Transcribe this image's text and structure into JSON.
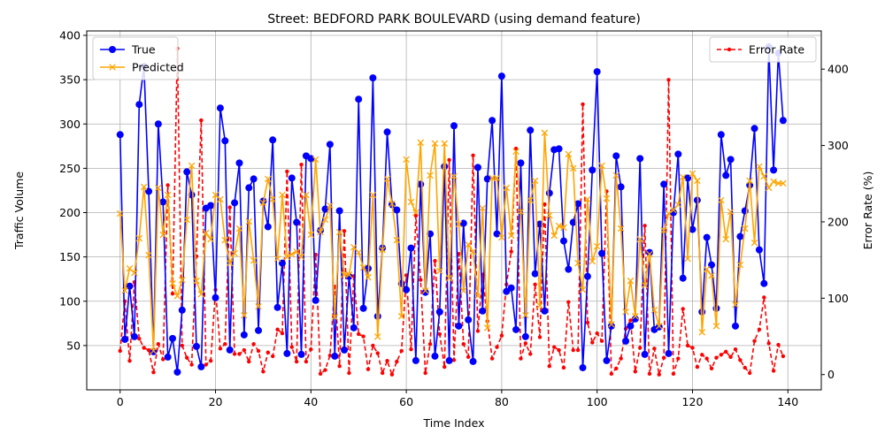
{
  "chart_data": {
    "type": "line",
    "title": "Street: BEDFORD PARK BOULEVARD (using demand feature)",
    "xlabel": "Time Index",
    "ylabel": "Traffic Volume",
    "y2label": "Error Rate (%)",
    "xlim": [
      -7,
      147
    ],
    "ylim": [
      0,
      405
    ],
    "y2lim": [
      -20,
      450
    ],
    "xticks": [
      0,
      20,
      40,
      60,
      80,
      100,
      120,
      140
    ],
    "yticks": [
      50,
      100,
      150,
      200,
      250,
      300,
      350,
      400
    ],
    "y2ticks": [
      0,
      100,
      200,
      300,
      400
    ],
    "grid": true,
    "legend_left": "top-left",
    "legend_right": "top-right",
    "colors": {
      "true": "#0000ff",
      "predicted": "#ffa500",
      "error": "#ff0000"
    },
    "series": [
      {
        "name": "True",
        "axis": "left",
        "values": [
          288,
          57,
          117,
          60,
          322,
          365,
          224,
          43,
          300,
          212,
          37,
          58,
          20,
          90,
          246,
          220,
          49,
          26,
          205,
          208,
          104,
          318,
          281,
          45,
          211,
          256,
          62,
          228,
          238,
          67,
          213,
          184,
          282,
          93,
          143,
          41,
          239,
          189,
          40,
          264,
          261,
          101,
          180,
          204,
          277,
          38,
          202,
          45,
          128,
          70,
          328,
          92,
          137,
          352,
          83,
          160,
          291,
          209,
          203,
          120,
          113,
          160,
          33,
          232,
          110,
          176,
          38,
          88,
          252,
          33,
          298,
          72,
          188,
          79,
          32,
          251,
          89,
          238,
          304,
          176,
          354,
          111,
          115,
          68,
          256,
          60,
          293,
          131,
          187,
          89,
          222,
          271,
          272,
          168,
          136,
          189,
          210,
          25,
          128,
          248,
          359,
          154,
          33,
          72,
          264,
          229,
          55,
          72,
          80,
          261,
          40,
          155,
          68,
          71,
          232,
          41,
          200,
          266,
          126,
          239,
          181,
          214,
          88,
          172,
          141,
          92,
          288,
          242,
          260,
          72,
          173,
          202,
          231,
          295,
          158,
          120,
          387,
          248,
          380,
          304
        ]
      },
      {
        "name": "Predicted",
        "axis": "left",
        "values": [
          199,
          112,
          137,
          132,
          171,
          229,
          152,
          44,
          228,
          175,
          220,
          120,
          106,
          124,
          192,
          253,
          123,
          108,
          177,
          170,
          220,
          215,
          169,
          143,
          154,
          182,
          84,
          190,
          146,
          94,
          211,
          238,
          215,
          148,
          220,
          150,
          153,
          156,
          150,
          220,
          175,
          260,
          178,
          192,
          208,
          82,
          178,
          130,
          130,
          161,
          155,
          138,
          127,
          220,
          60,
          158,
          238,
          210,
          169,
          83,
          260,
          212,
          200,
          279,
          112,
          242,
          278,
          134,
          278,
          126,
          241,
          187,
          112,
          164,
          156,
          106,
          205,
          70,
          239,
          239,
          172,
          228,
          174,
          269,
          201,
          84,
          214,
          236,
          95,
          290,
          197,
          174,
          185,
          183,
          266,
          250,
          143,
          113,
          215,
          145,
          162,
          253,
          216,
          74,
          242,
          182,
          88,
          123,
          83,
          170,
          118,
          153,
          90,
          72,
          180,
          199,
          203,
          209,
          240,
          148,
          244,
          236,
          65,
          136,
          129,
          72,
          214,
          170,
          201,
          96,
          141,
          182,
          236,
          166,
          252,
          241,
          228,
          235,
          233,
          233
        ]
      },
      {
        "name": "Error Rate",
        "axis": "right",
        "values": [
          31,
          96,
          18,
          121,
          47,
          35,
          32,
          3,
          40,
          20,
          248,
          106,
          427,
          38,
          22,
          13,
          155,
          333,
          13,
          18,
          111,
          34,
          40,
          219,
          27,
          27,
          32,
          17,
          40,
          31,
          4,
          29,
          24,
          59,
          54,
          266,
          36,
          17,
          275,
          17,
          33,
          157,
          1,
          6,
          25,
          115,
          11,
          188,
          2,
          129,
          53,
          50,
          7,
          38,
          28,
          2,
          18,
          0,
          17,
          31,
          130,
          33,
          208,
          124,
          2,
          40,
          149,
          53,
          10,
          281,
          19,
          158,
          40,
          23,
          287,
          57,
          131,
          70,
          21,
          36,
          51,
          118,
          161,
          296,
          21,
          41,
          27,
          118,
          49,
          223,
          11,
          36,
          32,
          9,
          95,
          32,
          32,
          354,
          68,
          42,
          54,
          44,
          240,
          1,
          8,
          21,
          60,
          71,
          4,
          35,
          195,
          1,
          34,
          0,
          22,
          386,
          1,
          21,
          86,
          38,
          35,
          10,
          26,
          21,
          8,
          22,
          26,
          30,
          23,
          33,
          19,
          9,
          2,
          44,
          59,
          101,
          41,
          5,
          39,
          24
        ]
      }
    ]
  }
}
